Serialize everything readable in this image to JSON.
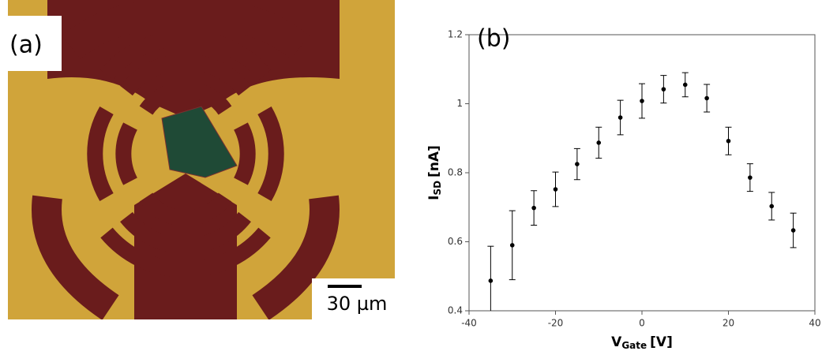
{
  "panel_a": {
    "label": "(a)",
    "scale_bar": "30 µm"
  },
  "chart_data": {
    "type": "errorbar",
    "panel_label": "(b)",
    "xlabel": {
      "symbol": "V",
      "subscript": "Gate",
      "unit": "[V]"
    },
    "ylabel": {
      "symbol": "I",
      "subscript": "SD",
      "unit": "[nA]"
    },
    "xlim": [
      -40,
      40
    ],
    "xticks": [
      -40,
      -20,
      0,
      20,
      40
    ],
    "ylim": [
      0.4,
      1.2
    ],
    "yticks": [
      0.4,
      0.6,
      0.8,
      1,
      1.2
    ],
    "grid": false,
    "series": [
      {
        "color": "#000000",
        "x": [
          -35,
          -30,
          -25,
          -20,
          -15,
          -10,
          -5,
          0,
          5,
          10,
          15,
          20,
          25,
          30,
          35
        ],
        "values": [
          0.487,
          0.59,
          0.698,
          0.752,
          0.825,
          0.887,
          0.96,
          1.008,
          1.042,
          1.055,
          1.016,
          0.892,
          0.786,
          0.703,
          0.633
        ],
        "errors": [
          0.1,
          0.1,
          0.05,
          0.05,
          0.045,
          0.045,
          0.05,
          0.05,
          0.04,
          0.035,
          0.04,
          0.04,
          0.04,
          0.04,
          0.05
        ]
      }
    ]
  }
}
